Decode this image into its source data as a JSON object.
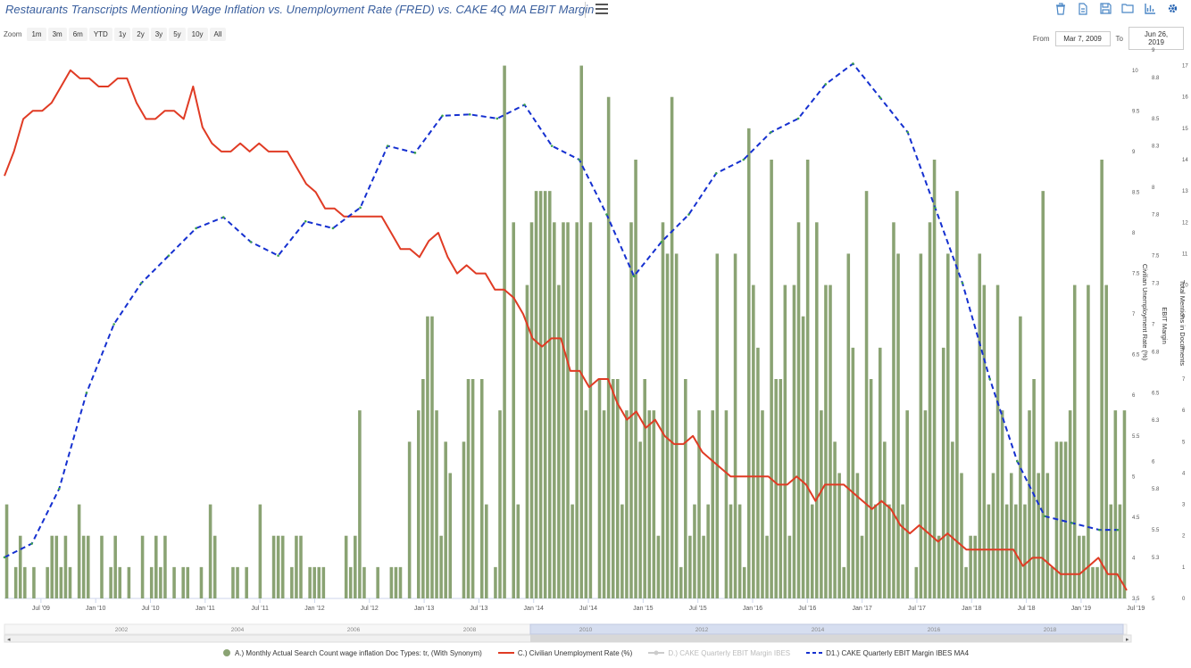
{
  "header": {
    "title": "Restaurants Transcripts Mentioning Wage Inflation vs. Unemployment Rate (FRED) vs. CAKE 4Q MA EBIT Margin",
    "tools": [
      "trash-icon",
      "document-icon",
      "save-icon",
      "folder-icon",
      "bar-chart-icon",
      "gear-icon"
    ]
  },
  "zoom": {
    "label": "Zoom",
    "buttons": [
      "1m",
      "3m",
      "6m",
      "YTD",
      "1y",
      "2y",
      "3y",
      "5y",
      "10y",
      "All"
    ]
  },
  "range": {
    "from_label": "From",
    "from_value": "Mar 7, 2009",
    "to_label": "To",
    "to_value": "Jun 26, 2019"
  },
  "chart_data": {
    "type": "bar+line",
    "title": "Restaurants Transcripts Mentioning Wage Inflation vs. Unemployment Rate (FRED) vs. CAKE 4Q MA EBIT Margin",
    "x_range": [
      "2009-03",
      "2019-06"
    ],
    "x_ticks": [
      "Jul '09",
      "Jan '10",
      "Jul '10",
      "Jan '11",
      "Jul '11",
      "Jan '12",
      "Jul '12",
      "Jan '13",
      "Jul '13",
      "Jan '14",
      "Jul '14",
      "Jan '15",
      "Jul '15",
      "Jan '16",
      "Jul '16",
      "Jan '17",
      "Jul '17",
      "Jan '18",
      "Jul '18",
      "Jan '19",
      "Jul '19"
    ],
    "axes": {
      "unemployment": {
        "label": "Civilian Unemployment Rate (%)",
        "ylim": [
          3.5,
          10.25
        ],
        "ticks": [
          "3.5",
          "4",
          "4.5",
          "5",
          "5.5",
          "6",
          "6.5",
          "7",
          "7.5",
          "8",
          "8.5",
          "9",
          "9.5",
          "10"
        ]
      },
      "ebit": {
        "label": "EBIT Margin",
        "ylim": [
          5,
          9
        ],
        "ticks": [
          "5",
          "5.3",
          "5.5",
          "5.8",
          "6",
          "6.3",
          "6.5",
          "6.8",
          "7",
          "7.3",
          "7.5",
          "7.8",
          "8",
          "8.3",
          "8.5",
          "8.8",
          "9"
        ]
      },
      "mentions": {
        "label": "Total Mentions in Documents",
        "ylim": [
          0,
          17.5
        ],
        "ticks": [
          "0",
          "1",
          "2",
          "3",
          "4",
          "5",
          "6",
          "7",
          "8",
          "9",
          "10",
          "11",
          "12",
          "13",
          "14",
          "15",
          "16",
          "17"
        ]
      }
    },
    "series": [
      {
        "name": "A.) Monthly Actual Search Count wage inflation Doc Types: tr, (With Synonym)",
        "kind": "bar",
        "color": "#8aa373",
        "x_start": "2009-03",
        "interval": "month",
        "values": [
          3,
          0,
          1,
          2,
          1,
          0,
          1,
          0,
          0,
          1,
          2,
          2,
          1,
          2,
          1,
          0,
          3,
          2,
          2,
          0,
          0,
          2,
          0,
          1,
          2,
          1,
          0,
          1,
          0,
          0,
          2,
          0,
          1,
          2,
          1,
          2,
          0,
          1,
          0,
          1,
          1,
          0,
          0,
          1,
          0,
          3,
          2,
          0,
          0,
          0,
          1,
          1,
          0,
          1,
          0,
          0,
          3,
          0,
          0,
          2,
          2,
          2,
          0,
          1,
          2,
          2,
          0,
          1,
          1,
          1,
          1,
          0,
          0,
          0,
          0,
          2,
          1,
          2,
          6,
          1,
          0,
          0,
          1,
          0,
          0,
          1,
          1,
          1,
          0,
          5,
          0,
          6,
          7,
          9,
          9,
          6,
          2,
          5,
          4,
          0,
          0,
          5,
          7,
          7,
          0,
          7,
          3,
          0,
          1,
          6,
          17,
          0,
          12,
          3,
          0,
          10,
          12,
          13,
          13,
          13,
          13,
          12,
          10,
          12,
          12,
          3,
          12,
          17,
          6,
          12,
          0,
          7,
          6,
          16,
          7,
          7,
          3,
          6,
          12,
          14,
          5,
          7,
          6,
          6,
          2,
          12,
          11,
          16,
          11,
          1,
          7,
          2,
          3,
          6,
          2,
          3,
          6,
          11,
          0,
          6,
          3,
          11,
          3,
          1,
          15,
          10,
          8,
          6,
          2,
          14,
          7,
          7,
          10,
          2,
          10,
          12,
          9,
          14,
          3,
          12,
          6,
          10,
          10,
          5,
          4,
          1,
          11,
          8,
          4,
          2,
          13,
          7,
          3,
          8,
          5,
          3,
          12,
          11,
          3,
          6,
          0,
          1,
          11,
          6,
          12,
          14,
          2,
          8,
          11,
          5,
          13,
          4,
          1,
          2,
          2,
          11,
          10,
          3,
          4,
          10,
          6,
          3,
          4,
          3,
          9,
          3,
          6,
          7,
          4,
          13,
          4,
          1,
          5,
          5,
          5,
          6,
          10,
          2,
          2,
          10,
          1,
          1,
          14,
          10,
          3,
          6,
          3,
          6
        ]
      },
      {
        "name": "C.) Civilian Unemployment Rate (%)",
        "kind": "line",
        "color": "#e03b24",
        "axis": "unemployment",
        "x_start": "2009-03",
        "interval": "month",
        "values": [
          8.7,
          9.0,
          9.4,
          9.5,
          9.5,
          9.6,
          9.8,
          10.0,
          9.9,
          9.9,
          9.8,
          9.8,
          9.9,
          9.9,
          9.6,
          9.4,
          9.4,
          9.5,
          9.5,
          9.4,
          9.8,
          9.3,
          9.1,
          9.0,
          9.0,
          9.1,
          9.0,
          9.1,
          9.0,
          9.0,
          9.0,
          8.8,
          8.6,
          8.5,
          8.3,
          8.3,
          8.2,
          8.2,
          8.2,
          8.2,
          8.2,
          8.0,
          7.8,
          7.8,
          7.7,
          7.9,
          8.0,
          7.7,
          7.5,
          7.6,
          7.5,
          7.5,
          7.3,
          7.3,
          7.2,
          7.0,
          6.7,
          6.6,
          6.7,
          6.7,
          6.3,
          6.3,
          6.1,
          6.2,
          6.2,
          5.9,
          5.7,
          5.8,
          5.6,
          5.7,
          5.5,
          5.4,
          5.4,
          5.5,
          5.3,
          5.2,
          5.1,
          5.0,
          5.0,
          5.0,
          5.0,
          5.0,
          4.9,
          4.9,
          5.0,
          4.9,
          4.7,
          4.9,
          4.9,
          4.9,
          4.8,
          4.7,
          4.6,
          4.7,
          4.6,
          4.4,
          4.3,
          4.4,
          4.3,
          4.2,
          4.3,
          4.2,
          4.1,
          4.1,
          4.1,
          4.1,
          4.1,
          4.1,
          3.9,
          4.0,
          4.0,
          3.9,
          3.8,
          3.8,
          3.8,
          3.9,
          4.0,
          3.8,
          3.8,
          3.6
        ]
      },
      {
        "name": "D.) CAKE Quarterly EBIT Margin IBES",
        "kind": "line",
        "color": "#bbbbbb",
        "hidden": true,
        "axis": "ebit",
        "values": []
      },
      {
        "name": "D1.) CAKE Quarterly EBIT Margin IBES MA4",
        "kind": "line",
        "style": "dashed",
        "color": "#1530d0",
        "axis": "ebit",
        "points": [
          [
            "2009-03",
            5.3
          ],
          [
            "2009-06",
            5.4
          ],
          [
            "2009-09",
            5.8
          ],
          [
            "2009-12",
            6.5
          ],
          [
            "2010-03",
            7.0
          ],
          [
            "2010-06",
            7.3
          ],
          [
            "2010-09",
            7.5
          ],
          [
            "2010-12",
            7.7
          ],
          [
            "2011-03",
            7.78
          ],
          [
            "2011-06",
            7.6
          ],
          [
            "2011-09",
            7.5
          ],
          [
            "2011-12",
            7.75
          ],
          [
            "2012-03",
            7.7
          ],
          [
            "2012-06",
            7.85
          ],
          [
            "2012-09",
            8.3
          ],
          [
            "2012-12",
            8.25
          ],
          [
            "2013-03",
            8.52
          ],
          [
            "2013-06",
            8.53
          ],
          [
            "2013-09",
            8.5
          ],
          [
            "2013-12",
            8.6
          ],
          [
            "2014-03",
            8.3
          ],
          [
            "2014-06",
            8.2
          ],
          [
            "2014-09",
            7.8
          ],
          [
            "2014-12",
            7.35
          ],
          [
            "2015-03",
            7.6
          ],
          [
            "2015-06",
            7.8
          ],
          [
            "2015-09",
            8.1
          ],
          [
            "2015-12",
            8.2
          ],
          [
            "2016-03",
            8.4
          ],
          [
            "2016-06",
            8.5
          ],
          [
            "2016-09",
            8.75
          ],
          [
            "2016-12",
            8.9
          ],
          [
            "2017-03",
            8.65
          ],
          [
            "2017-06",
            8.4
          ],
          [
            "2017-09",
            7.85
          ],
          [
            "2017-12",
            7.3
          ],
          [
            "2018-03",
            6.6
          ],
          [
            "2018-06",
            6.0
          ],
          [
            "2018-09",
            5.6
          ],
          [
            "2018-12",
            5.55
          ],
          [
            "2019-03",
            5.5
          ],
          [
            "2019-05",
            5.5
          ]
        ]
      }
    ],
    "navigator": {
      "years": [
        "2002",
        "2004",
        "2006",
        "2008",
        "2010",
        "2012",
        "2014",
        "2016",
        "2018"
      ]
    },
    "legend_placement": "bottom",
    "grid": false
  }
}
